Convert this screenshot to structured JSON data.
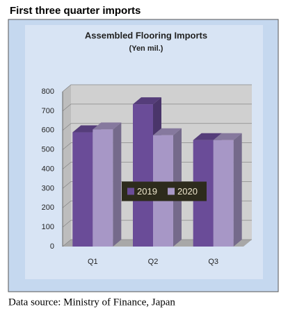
{
  "header": {
    "title": "First three quarter imports"
  },
  "footer": {
    "source": "Data source: Ministry of Finance, Japan"
  },
  "chart_data": {
    "type": "bar",
    "title": "Assembled Flooring Imports",
    "subtitle": "(Yen mil.)",
    "categories": [
      "Q1",
      "Q2",
      "Q3"
    ],
    "series": [
      {
        "name": "2019",
        "color": "#6a4c98",
        "values": [
          590,
          735,
          550
        ]
      },
      {
        "name": "2020",
        "color": "#a797c6",
        "values": [
          605,
          575,
          550
        ]
      }
    ],
    "ylim": [
      0,
      800
    ],
    "yticks": [
      0,
      100,
      200,
      300,
      400,
      500,
      600,
      700,
      800
    ],
    "grid": true,
    "legend": "center"
  }
}
